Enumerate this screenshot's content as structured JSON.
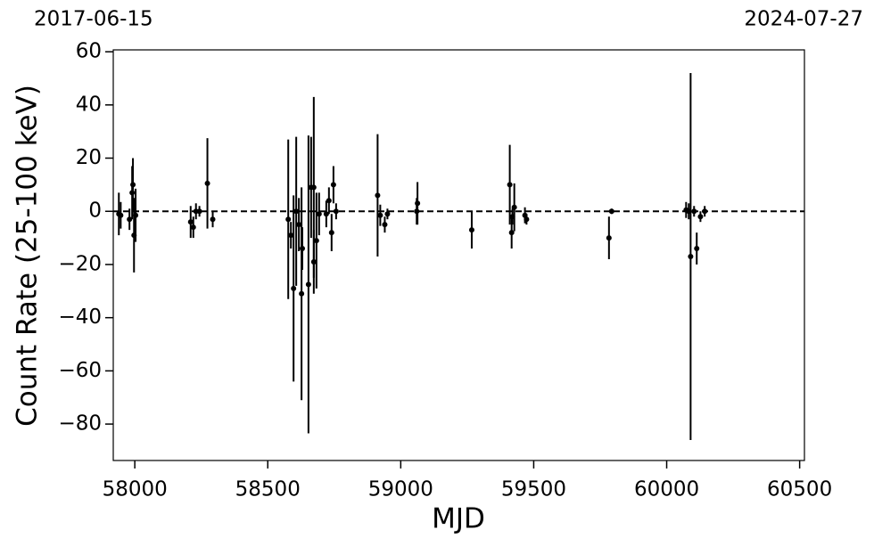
{
  "chart_data": {
    "type": "errorbar",
    "top_left_label": "2017-06-15",
    "top_right_label": "2024-07-27",
    "xlabel": "MJD",
    "ylabel": "Count Rate (25-100 keV)",
    "color": "#000000",
    "hline": 0,
    "xlim": [
      57919,
      60518
    ],
    "ylim": [
      -93.7,
      60.7
    ],
    "xticks": [
      58000,
      58500,
      59000,
      59500,
      60000,
      60500
    ],
    "yticks": [
      {
        "value": -80,
        "label": "−80"
      },
      {
        "value": -60,
        "label": "−60"
      },
      {
        "value": -40,
        "label": "−40"
      },
      {
        "value": -20,
        "label": "−20"
      },
      0,
      20,
      40,
      60
    ],
    "x": [
      57940,
      57947,
      57980,
      57990,
      57993,
      57997,
      58003,
      58210,
      58220,
      58230,
      58243,
      58273,
      58293,
      58577,
      58587,
      58597,
      58607,
      58617,
      58627,
      58630,
      58653,
      58663,
      58673,
      58673,
      58683,
      58693,
      58720,
      58730,
      58740,
      58747,
      58757,
      58913,
      58923,
      58940,
      58950,
      59060,
      59063,
      59267,
      59410,
      59417,
      59420,
      59427,
      59467,
      59473,
      59783,
      59793,
      60073,
      60083,
      60090,
      60103,
      60113,
      60127,
      60143
    ],
    "values": [
      -1,
      -1.5,
      -3,
      7,
      10,
      -9,
      -1.5,
      -4,
      -6,
      0,
      0,
      10.5,
      -3,
      -3,
      -9,
      -29,
      0,
      -5,
      -31,
      -14,
      -27.5,
      9,
      -19,
      9,
      -11,
      -1,
      -1,
      4,
      -8,
      10,
      0,
      6,
      -1.5,
      -5,
      -1,
      0,
      3,
      -7,
      10,
      -8,
      -2,
      1.5,
      -1.5,
      -3,
      -10,
      0,
      0.5,
      0,
      -17,
      0,
      -14,
      -2,
      0
    ],
    "errors": [
      8,
      5,
      4,
      10,
      10,
      14,
      10,
      6,
      4,
      3,
      2,
      17,
      3,
      30,
      5,
      35,
      28,
      10,
      40,
      8,
      56,
      19,
      12,
      34,
      18,
      8,
      5,
      5,
      7,
      7,
      3,
      23,
      4,
      3,
      2,
      5,
      8,
      7,
      15,
      6,
      3,
      9,
      3,
      2,
      8,
      1,
      3,
      3,
      69,
      2,
      6,
      2,
      2
    ]
  }
}
